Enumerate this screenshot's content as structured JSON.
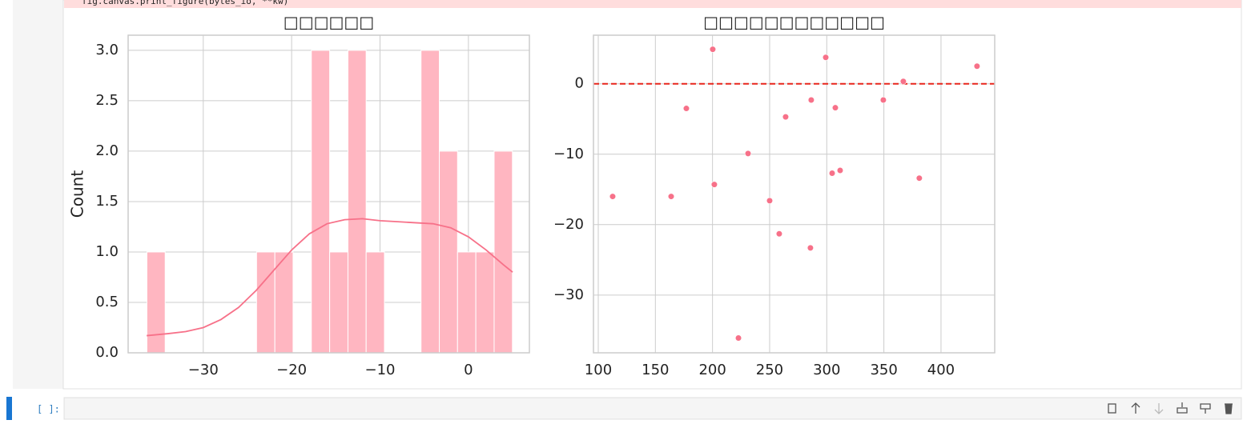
{
  "notebook": {
    "code_line": "fig.canvas.print_figure(bytes_io, **kw)",
    "prompt": "[ ]:"
  },
  "chart_data": [
    {
      "type": "histogram",
      "title": "□□□□□□",
      "ylabel": "Count",
      "bins": [
        -36.38,
        -34.31,
        -32.24,
        -30.18,
        -28.11,
        -26.04,
        -23.97,
        -21.9,
        -19.84,
        -17.77,
        -15.7,
        -13.63,
        -11.57,
        -9.5,
        -7.43,
        -5.36,
        -3.29,
        -1.23,
        0.84,
        2.91,
        4.98
      ],
      "counts": [
        1,
        0,
        0,
        0,
        0,
        0,
        1,
        1,
        0,
        3,
        1,
        3,
        1,
        0,
        0,
        3,
        2,
        1,
        1,
        2
      ],
      "color": "#ffb6c1",
      "line_color": "#f77189",
      "kde": {
        "x": [
          -36.4,
          -34,
          -32,
          -30,
          -28,
          -26,
          -24,
          -22,
          -20,
          -18,
          -16,
          -14,
          -12,
          -10,
          -8,
          -6,
          -4,
          -2,
          0,
          2,
          4,
          5
        ],
        "values": [
          0.17,
          0.19,
          0.21,
          0.25,
          0.33,
          0.45,
          0.62,
          0.82,
          1.02,
          1.18,
          1.28,
          1.32,
          1.33,
          1.31,
          1.3,
          1.29,
          1.28,
          1.24,
          1.15,
          1.02,
          0.87,
          0.8
        ]
      },
      "xlim": [
        -38.5,
        6.9
      ],
      "ylim": [
        0,
        3.15
      ],
      "xticks": [
        {
          "value": -30,
          "label": "−30"
        },
        {
          "value": -20,
          "label": "−20"
        },
        {
          "value": -10,
          "label": "−10"
        },
        0
      ],
      "yticks": [
        {
          "value": 0,
          "label": "0.0"
        },
        0.5,
        {
          "value": 1,
          "label": "1.0"
        },
        1.5,
        {
          "value": 2,
          "label": "2.0"
        },
        2.5,
        {
          "value": 3,
          "label": "3.0"
        }
      ],
      "grid": true
    },
    {
      "type": "scatter",
      "title": "□□□□□□□□□□□□",
      "x": [
        112.6,
        163.8,
        177.1,
        200.2,
        201.6,
        231.1,
        222.7,
        250,
        258.4,
        264,
        285.7,
        286.4,
        299.1,
        307.5,
        304.7,
        311.7,
        349.5,
        367,
        381,
        431.5
      ],
      "values": [
        -16.0,
        -16.0,
        -3.5,
        4.9,
        -14.3,
        -9.9,
        -36.1,
        -16.6,
        -21.3,
        -4.7,
        -23.3,
        -2.3,
        3.75,
        -3.4,
        -12.7,
        -12.3,
        -2.3,
        0.34,
        -13.4,
        2.5
      ],
      "color": "#f77189",
      "reference_line": 0,
      "reference_color": "#e8261c",
      "xlim": [
        95.8,
        447
      ],
      "ylim": [
        -38.2,
        6.9
      ],
      "xticks": [
        100,
        150,
        200,
        250,
        300,
        350,
        400
      ],
      "yticks": [
        {
          "value": -30,
          "label": "−30"
        },
        {
          "value": -20,
          "label": "−20"
        },
        {
          "value": -10,
          "label": "−10"
        },
        0
      ],
      "grid": true
    }
  ]
}
